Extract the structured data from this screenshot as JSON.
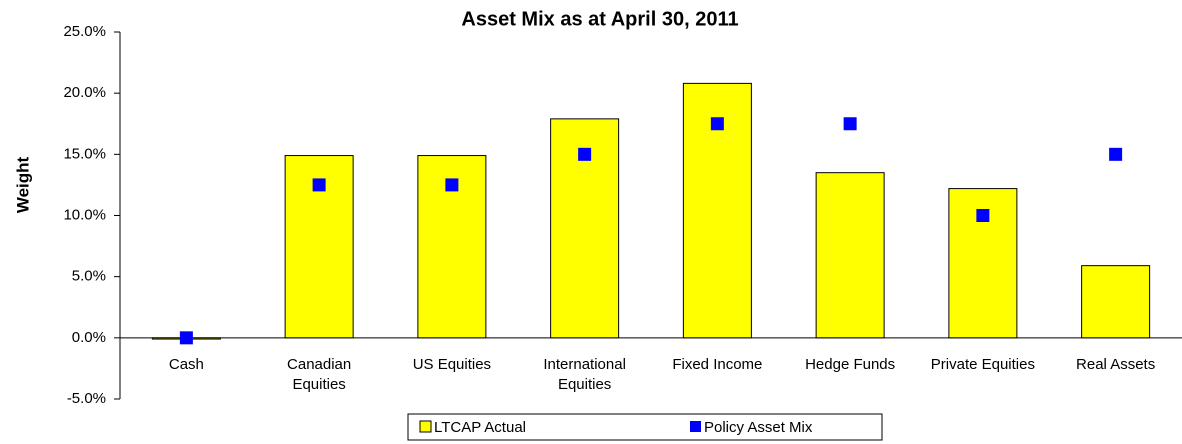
{
  "chart_data": {
    "type": "bar",
    "title": "Asset Mix as at April 30, 2011",
    "y_label": "Weight",
    "categories": [
      "Cash",
      "Canadian\nEquities",
      "US Equities",
      "International\nEquities",
      "Fixed Income",
      "Hedge Funds",
      "Private Equities",
      "Real Assets"
    ],
    "series": [
      {
        "name": "LTCAP Actual",
        "color": "#ffff00",
        "mark": "bar",
        "values": [
          -0.1,
          14.9,
          14.9,
          17.9,
          20.8,
          13.5,
          12.2,
          5.9
        ]
      },
      {
        "name": "Policy Asset Mix",
        "color": "#0000ff",
        "mark": "square",
        "values": [
          0,
          12.5,
          12.5,
          15,
          17.5,
          17.5,
          10,
          15
        ]
      }
    ],
    "ylim": [
      -5,
      25
    ],
    "yticks": [
      {
        "value": -5,
        "label": "-5.0%"
      },
      {
        "value": 0,
        "label": "0.0%"
      },
      {
        "value": 5,
        "label": "5.0%"
      },
      {
        "value": 10,
        "label": "10.0%"
      },
      {
        "value": 15,
        "label": "15.0%"
      },
      {
        "value": 20,
        "label": "20.0%"
      },
      {
        "value": 25,
        "label": "25.0%"
      }
    ],
    "grid": false,
    "legend": "bottom"
  }
}
